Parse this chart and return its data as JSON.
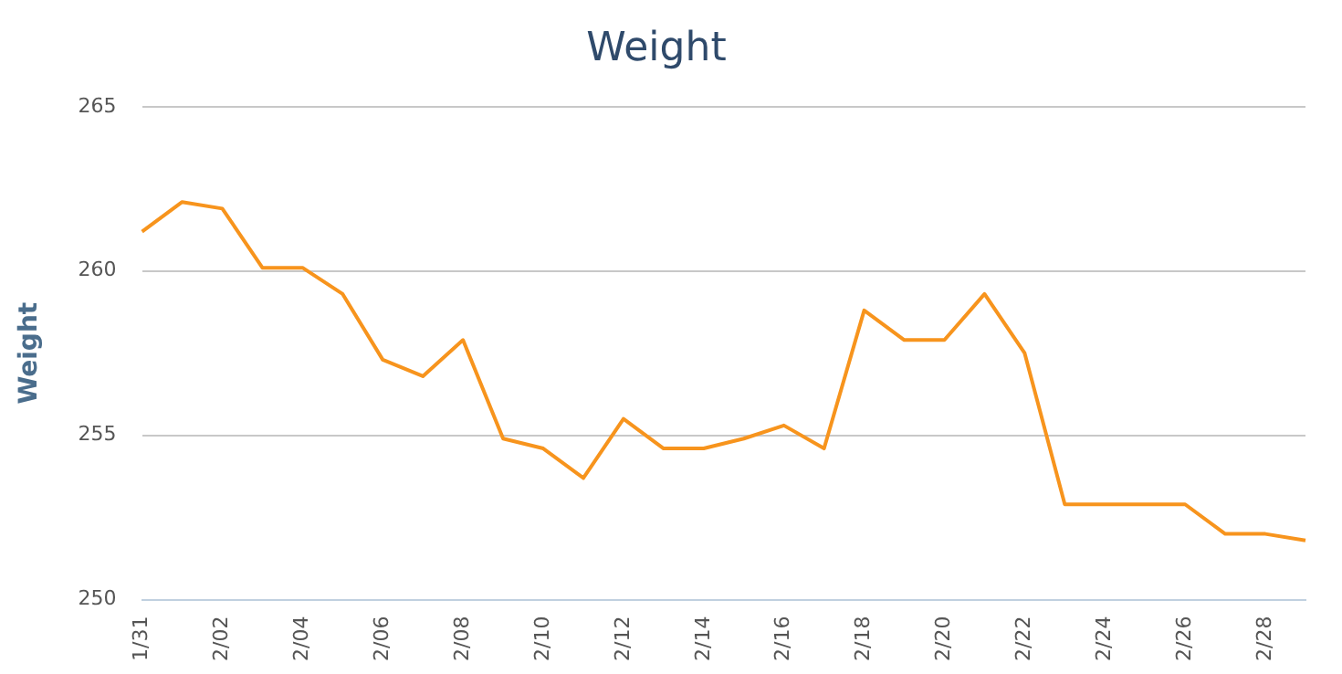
{
  "chart_data": {
    "type": "line",
    "title": "Weight",
    "ylabel": "Weight",
    "categories": [
      "1/31",
      null,
      "2/02",
      null,
      "2/04",
      null,
      "2/06",
      null,
      "2/08",
      null,
      "2/10",
      null,
      "2/12",
      null,
      "2/14",
      null,
      "2/16",
      null,
      "2/18",
      null,
      "2/20",
      null,
      "2/22",
      null,
      "2/24",
      null,
      "2/26",
      null,
      "2/28",
      null
    ],
    "series": [
      {
        "color": "#f7941d",
        "values": [
          261.2,
          262.1,
          261.9,
          260.1,
          260.1,
          259.3,
          257.3,
          256.8,
          257.9,
          254.9,
          254.6,
          253.7,
          255.5,
          254.6,
          254.6,
          254.9,
          255.3,
          254.6,
          258.8,
          257.9,
          257.9,
          259.3,
          257.5,
          252.9,
          252.9,
          252.9,
          252.9,
          252.0,
          252.0,
          251.8
        ]
      }
    ],
    "ylim": [
      250,
      265
    ],
    "yticks": [
      250,
      255,
      260,
      265
    ],
    "grid": "y",
    "legend": false,
    "marker": "none",
    "line_style": "solid"
  }
}
